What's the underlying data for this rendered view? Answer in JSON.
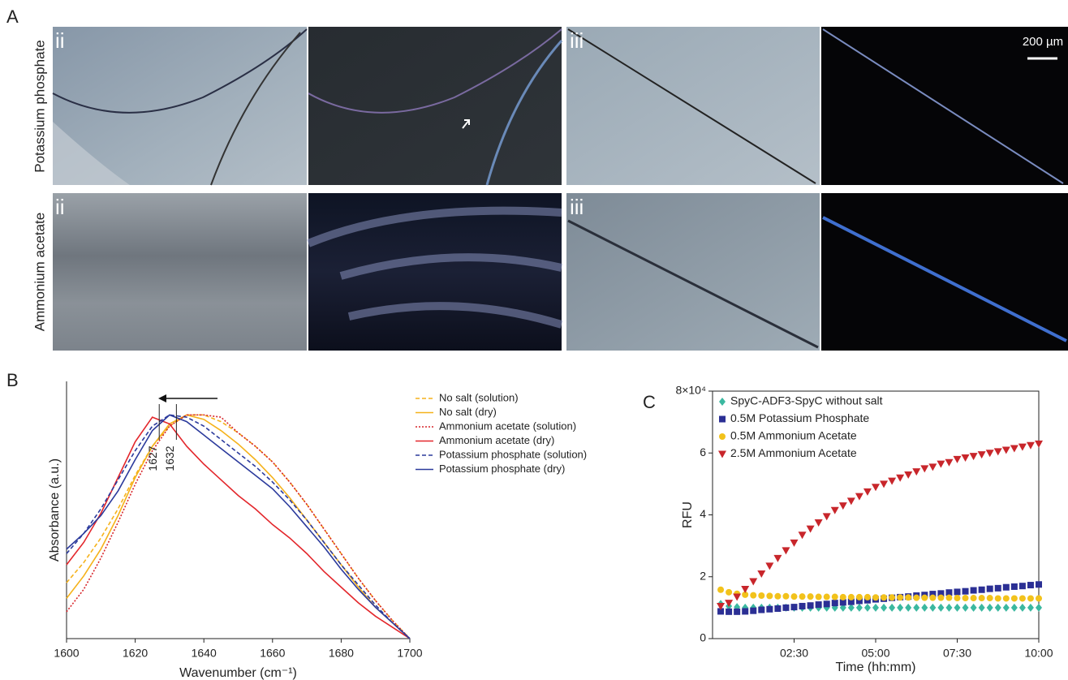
{
  "panel_a": {
    "label": "A",
    "rows": [
      {
        "label": "Potassium phosphate",
        "panels": [
          "ii",
          "iii"
        ]
      },
      {
        "label": "Ammonium acetate",
        "panels": [
          "ii",
          "iii"
        ]
      }
    ],
    "scale_bar": "200 µm"
  },
  "chart_data": [
    {
      "panel_label": "B",
      "type": "line",
      "xlabel": "Wavenumber (cm⁻¹)",
      "ylabel": "Absorbance (a.u.)",
      "x": [
        1600,
        1605,
        1610,
        1615,
        1620,
        1625,
        1630,
        1635,
        1640,
        1645,
        1650,
        1655,
        1660,
        1665,
        1670,
        1675,
        1680,
        1685,
        1690,
        1695,
        1700
      ],
      "xlim": [
        1600,
        1700
      ],
      "xticks": [
        1600,
        1620,
        1640,
        1660,
        1680,
        1700
      ],
      "ylim": [
        0,
        1.15
      ],
      "peak_markers": [
        1627,
        1632
      ],
      "series": [
        {
          "name": "No salt (solution)",
          "color": "#f5b21b",
          "dash": "dashed",
          "values": [
            0.25,
            0.34,
            0.45,
            0.58,
            0.73,
            0.86,
            0.95,
            1.0,
            1.0,
            0.97,
            0.92,
            0.86,
            0.79,
            0.7,
            0.6,
            0.49,
            0.38,
            0.27,
            0.17,
            0.08,
            0
          ]
        },
        {
          "name": "No salt (dry)",
          "color": "#f5b21b",
          "dash": "solid",
          "values": [
            0.18,
            0.28,
            0.4,
            0.55,
            0.72,
            0.86,
            0.96,
            1.0,
            0.98,
            0.93,
            0.87,
            0.8,
            0.72,
            0.63,
            0.53,
            0.43,
            0.33,
            0.23,
            0.14,
            0.07,
            0
          ]
        },
        {
          "name": "Ammonium acetate (solution)",
          "color": "#d7262b",
          "dash": "dotted",
          "values": [
            0.12,
            0.22,
            0.36,
            0.52,
            0.69,
            0.84,
            0.95,
            1.0,
            1.0,
            0.99,
            0.92,
            0.86,
            0.79,
            0.7,
            0.6,
            0.49,
            0.38,
            0.27,
            0.17,
            0.08,
            0
          ]
        },
        {
          "name": "Ammonium acetate (dry)",
          "color": "#e3262b",
          "dash": "solid",
          "values": [
            0.33,
            0.43,
            0.56,
            0.72,
            0.88,
            0.99,
            0.96,
            0.86,
            0.78,
            0.71,
            0.64,
            0.58,
            0.51,
            0.45,
            0.38,
            0.3,
            0.23,
            0.16,
            0.1,
            0.05,
            0
          ]
        },
        {
          "name": "Potassium phosphate (solution)",
          "color": "#2b3a9c",
          "dash": "dashed",
          "values": [
            0.38,
            0.47,
            0.58,
            0.71,
            0.84,
            0.95,
            1.0,
            0.99,
            0.95,
            0.89,
            0.83,
            0.77,
            0.7,
            0.62,
            0.53,
            0.43,
            0.33,
            0.24,
            0.15,
            0.07,
            0
          ]
        },
        {
          "name": "Potassium phosphate (dry)",
          "color": "#2b3a9c",
          "dash": "solid",
          "values": [
            0.4,
            0.47,
            0.55,
            0.66,
            0.8,
            0.93,
            1.0,
            0.97,
            0.91,
            0.85,
            0.79,
            0.73,
            0.67,
            0.59,
            0.5,
            0.41,
            0.31,
            0.22,
            0.14,
            0.07,
            0
          ]
        }
      ]
    },
    {
      "panel_label": "C",
      "type": "scatter",
      "xlabel": "Time (hh:mm)",
      "ylabel": "RFU",
      "x": [
        0.25,
        0.5,
        0.75,
        1,
        1.25,
        1.5,
        1.75,
        2,
        2.25,
        2.5,
        2.75,
        3,
        3.25,
        3.5,
        3.75,
        4,
        4.25,
        4.5,
        4.75,
        5,
        5.25,
        5.5,
        5.75,
        6,
        6.25,
        6.5,
        6.75,
        7,
        7.25,
        7.5,
        7.75,
        8,
        8.25,
        8.5,
        8.75,
        9,
        9.25,
        9.5,
        9.75,
        10
      ],
      "xlim": [
        0,
        10
      ],
      "xticks": [
        {
          "value": 2.5,
          "label": "02:30"
        },
        {
          "value": 5,
          "label": "05:00"
        },
        {
          "value": 7.5,
          "label": "07:30"
        },
        {
          "value": 10,
          "label": "10:00"
        }
      ],
      "ylim": [
        0,
        8
      ],
      "yticks": [
        0,
        2,
        4,
        6,
        {
          "value": 8,
          "label": "8×10⁴"
        }
      ],
      "series": [
        {
          "name": "SpyC-ADF3-SpyC without salt",
          "color": "#3bb8a0",
          "marker": "diamond",
          "values": [
            1.12,
            1.05,
            1.02,
            1,
            1,
            1,
            1,
            1,
            1,
            1,
            1,
            1,
            1,
            1,
            1,
            1,
            1,
            1,
            1,
            1,
            1,
            1,
            1,
            1,
            1,
            1,
            1,
            1,
            1,
            1,
            1,
            1,
            1,
            1,
            1,
            1,
            1,
            1,
            1,
            1
          ]
        },
        {
          "name": "0.5M Potassium Phosphate",
          "color": "#2b2f94",
          "marker": "square",
          "values": [
            0.88,
            0.87,
            0.87,
            0.88,
            0.9,
            0.93,
            0.95,
            0.97,
            1.0,
            1.02,
            1.05,
            1.07,
            1.1,
            1.12,
            1.15,
            1.17,
            1.19,
            1.22,
            1.24,
            1.27,
            1.29,
            1.32,
            1.34,
            1.36,
            1.39,
            1.41,
            1.44,
            1.46,
            1.49,
            1.51,
            1.53,
            1.56,
            1.58,
            1.61,
            1.63,
            1.66,
            1.68,
            1.7,
            1.73,
            1.75
          ]
        },
        {
          "name": "0.5M Ammonium Acetate",
          "color": "#f2c21b",
          "marker": "circle",
          "values": [
            1.58,
            1.5,
            1.45,
            1.42,
            1.4,
            1.39,
            1.38,
            1.37,
            1.37,
            1.36,
            1.36,
            1.36,
            1.35,
            1.35,
            1.35,
            1.34,
            1.34,
            1.34,
            1.34,
            1.33,
            1.33,
            1.33,
            1.33,
            1.33,
            1.32,
            1.32,
            1.32,
            1.32,
            1.32,
            1.31,
            1.31,
            1.31,
            1.31,
            1.31,
            1.3,
            1.3,
            1.3,
            1.3,
            1.3,
            1.3
          ]
        },
        {
          "name": "2.5M Ammonium Acetate",
          "color": "#c8262b",
          "marker": "triangle-down",
          "values": [
            1.05,
            1.15,
            1.35,
            1.6,
            1.85,
            2.1,
            2.35,
            2.6,
            2.85,
            3.1,
            3.35,
            3.55,
            3.75,
            3.95,
            4.15,
            4.3,
            4.45,
            4.6,
            4.75,
            4.9,
            5.0,
            5.1,
            5.2,
            5.3,
            5.4,
            5.5,
            5.55,
            5.65,
            5.7,
            5.8,
            5.85,
            5.9,
            5.95,
            6.0,
            6.05,
            6.1,
            6.15,
            6.2,
            6.25,
            6.3
          ]
        }
      ]
    }
  ]
}
